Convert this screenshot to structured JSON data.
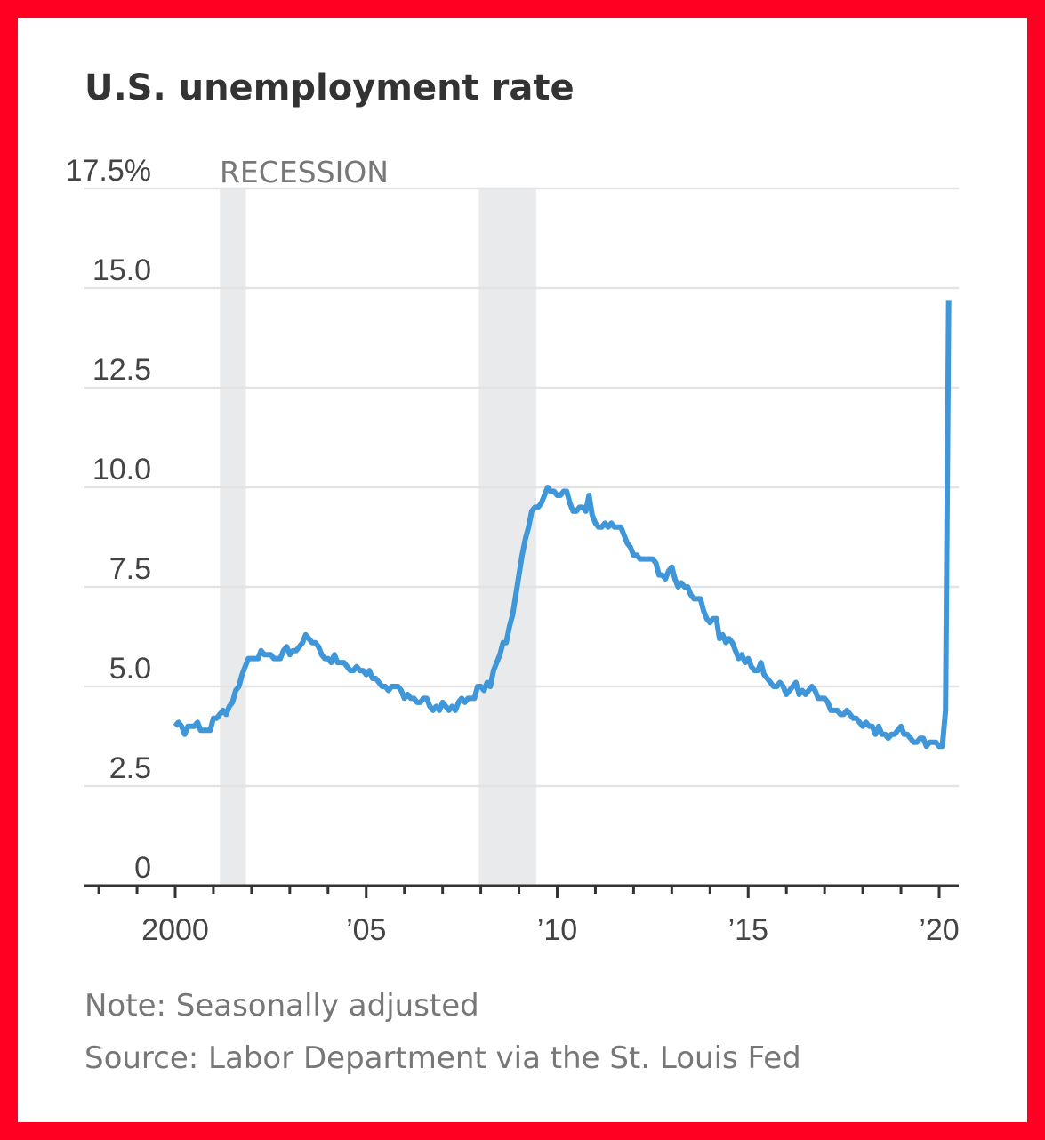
{
  "chart_data": {
    "type": "line",
    "title": "U.S. unemployment rate",
    "xlabel": "",
    "ylabel": "",
    "ylim": [
      0,
      17.5
    ],
    "xlim": [
      1997.6,
      2020.5
    ],
    "grid": true,
    "y_ticks": [
      {
        "value": 17.5,
        "label": "17.5%"
      },
      {
        "value": 15,
        "label": "15.0"
      },
      {
        "value": 12.5,
        "label": "12.5"
      },
      {
        "value": 10,
        "label": "10.0"
      },
      {
        "value": 7.5,
        "label": "7.5"
      },
      {
        "value": 5,
        "label": "5.0"
      },
      {
        "value": 2.5,
        "label": "2.5"
      },
      {
        "value": 0,
        "label": "0"
      }
    ],
    "x_ticks": [
      {
        "value": 2000,
        "label": "2000"
      },
      {
        "value": 2005,
        "label": "’05"
      },
      {
        "value": 2010,
        "label": "’10"
      },
      {
        "value": 2015,
        "label": "’15"
      },
      {
        "value": 2020,
        "label": "’20"
      }
    ],
    "recession_label": "RECESSION",
    "recessions": [
      [
        2001.17,
        2001.85
      ],
      [
        2007.95,
        2009.45
      ]
    ],
    "series": [
      {
        "name": "Unemployment rate",
        "color": "#3f97d9",
        "start": 2000.0,
        "step_years": 0.08333,
        "values": [
          4.0,
          4.1,
          4.0,
          3.8,
          4.0,
          4.0,
          4.0,
          4.1,
          3.9,
          3.9,
          3.9,
          3.9,
          4.2,
          4.2,
          4.3,
          4.4,
          4.3,
          4.5,
          4.6,
          4.9,
          5.0,
          5.3,
          5.5,
          5.7,
          5.7,
          5.7,
          5.7,
          5.9,
          5.8,
          5.8,
          5.8,
          5.7,
          5.7,
          5.7,
          5.9,
          6.0,
          5.8,
          5.9,
          5.9,
          6.0,
          6.1,
          6.3,
          6.2,
          6.1,
          6.1,
          6.0,
          5.8,
          5.7,
          5.7,
          5.6,
          5.8,
          5.6,
          5.6,
          5.6,
          5.5,
          5.4,
          5.4,
          5.5,
          5.4,
          5.4,
          5.3,
          5.4,
          5.2,
          5.2,
          5.1,
          5.0,
          5.0,
          4.9,
          5.0,
          5.0,
          5.0,
          4.9,
          4.7,
          4.8,
          4.7,
          4.7,
          4.6,
          4.6,
          4.7,
          4.7,
          4.5,
          4.4,
          4.5,
          4.4,
          4.6,
          4.5,
          4.4,
          4.5,
          4.4,
          4.6,
          4.7,
          4.6,
          4.7,
          4.7,
          4.7,
          5.0,
          5.0,
          4.9,
          5.1,
          5.0,
          5.4,
          5.6,
          5.8,
          6.1,
          6.1,
          6.5,
          6.8,
          7.3,
          7.8,
          8.3,
          8.7,
          9.0,
          9.4,
          9.5,
          9.5,
          9.6,
          9.8,
          10.0,
          9.9,
          9.9,
          9.8,
          9.8,
          9.9,
          9.9,
          9.6,
          9.4,
          9.4,
          9.5,
          9.5,
          9.4,
          9.8,
          9.3,
          9.1,
          9.0,
          9.0,
          9.1,
          9.0,
          9.1,
          9.0,
          9.0,
          9.0,
          8.8,
          8.6,
          8.5,
          8.3,
          8.3,
          8.2,
          8.2,
          8.2,
          8.2,
          8.2,
          8.1,
          7.8,
          7.8,
          7.7,
          7.9,
          8.0,
          7.7,
          7.5,
          7.6,
          7.5,
          7.5,
          7.3,
          7.2,
          7.2,
          7.2,
          6.9,
          6.7,
          6.6,
          6.7,
          6.7,
          6.2,
          6.3,
          6.1,
          6.2,
          6.1,
          5.9,
          5.7,
          5.8,
          5.6,
          5.7,
          5.5,
          5.4,
          5.4,
          5.6,
          5.3,
          5.2,
          5.1,
          5.0,
          5.0,
          5.1,
          5.0,
          4.8,
          4.9,
          5.0,
          5.1,
          4.8,
          4.9,
          4.8,
          4.9,
          5.0,
          4.9,
          4.7,
          4.7,
          4.7,
          4.6,
          4.4,
          4.4,
          4.4,
          4.3,
          4.3,
          4.4,
          4.3,
          4.2,
          4.2,
          4.1,
          4.0,
          4.1,
          4.0,
          4.0,
          3.8,
          4.0,
          3.8,
          3.8,
          3.7,
          3.8,
          3.8,
          3.9,
          4.0,
          3.8,
          3.8,
          3.7,
          3.6,
          3.6,
          3.7,
          3.7,
          3.5,
          3.6,
          3.6,
          3.6,
          3.5,
          3.5,
          4.4,
          14.7
        ]
      }
    ],
    "notes": [
      "Note: Seasonally adjusted",
      "Source: Labor Department via the St. Louis Fed"
    ]
  }
}
